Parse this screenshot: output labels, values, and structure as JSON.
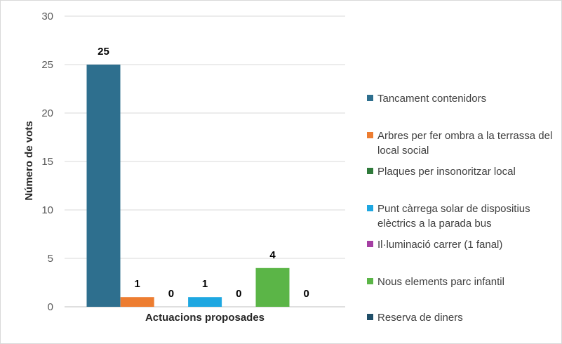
{
  "chart_data": {
    "type": "bar",
    "title": "",
    "xlabel": "Actuacions proposades",
    "ylabel": "Número de vots",
    "ylim": [
      0,
      30
    ],
    "yticks": [
      0,
      5,
      10,
      15,
      20,
      25,
      30
    ],
    "grid": true,
    "legend_position": "right",
    "series": [
      {
        "name": "Tancament contenidors",
        "value": 25,
        "color": "#2e6f8e"
      },
      {
        "name": "Arbres per fer ombra a la terrassa del local social",
        "value": 1,
        "color": "#ed7d31"
      },
      {
        "name": "Plaques per insonoritzar local",
        "value": 0,
        "color": "#2f7a3b"
      },
      {
        "name": "Punt càrrega solar de dispositius elèctrics a la parada bus",
        "value": 1,
        "color": "#1ea7e1"
      },
      {
        "name": "Il·luminació carrer (1 fanal)",
        "value": 0,
        "color": "#a53fa3"
      },
      {
        "name": "Nous elements parc infantil",
        "value": 4,
        "color": "#5bb547"
      },
      {
        "name": "Reserva de diners",
        "value": 0,
        "color": "#1f4e68"
      }
    ]
  }
}
